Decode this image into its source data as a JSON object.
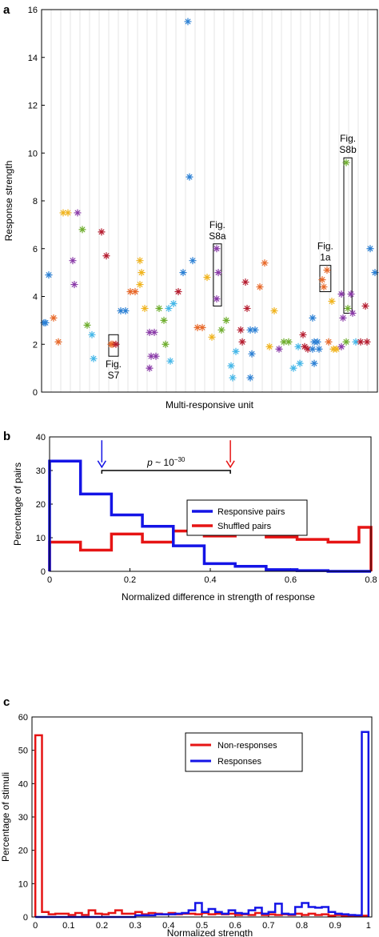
{
  "chart_data": [
    {
      "panel": "a",
      "type": "scatter",
      "xlabel": "Multi-responsive unit",
      "ylabel": "Response strength",
      "ylim": [
        0,
        16
      ],
      "yticks": [
        0,
        2,
        4,
        6,
        8,
        10,
        12,
        14,
        16
      ],
      "grid": "vertical",
      "marker": "asterisk",
      "units": [
        {
          "u": 1,
          "values": [
            2.9,
            2.9
          ],
          "color": "#2a7fd4"
        },
        {
          "u": 2,
          "values": [
            4.9
          ],
          "color": "#2a7fd4"
        },
        {
          "u": 3,
          "values": [
            3.1
          ],
          "color": "#e8692a"
        },
        {
          "u": 4,
          "values": [
            2.1
          ],
          "color": "#e8692a"
        },
        {
          "u": 5,
          "values": [
            7.5
          ],
          "color": "#f0b31c"
        },
        {
          "u": 6,
          "values": [
            7.5
          ],
          "color": "#f0b31c"
        },
        {
          "u": 7,
          "values": [
            5.5,
            4.5
          ],
          "color": "#8a3aa8"
        },
        {
          "u": 8,
          "values": [
            7.5
          ],
          "color": "#8a3aa8"
        },
        {
          "u": 9,
          "values": [
            6.8
          ],
          "color": "#6fae2e"
        },
        {
          "u": 10,
          "values": [
            2.8
          ],
          "color": "#6fae2e"
        },
        {
          "u": 11,
          "values": [
            2.4,
            1.4
          ],
          "color": "#42b6e8"
        },
        {
          "u": 13,
          "values": [
            6.7
          ],
          "color": "#b51b2e"
        },
        {
          "u": 14,
          "values": [
            5.7
          ],
          "color": "#b51b2e"
        },
        {
          "u": 15,
          "values": [
            2.0,
            2.0
          ],
          "color": "#e8692a"
        },
        {
          "u": 16,
          "values": [
            2.0
          ],
          "color": "#b51b2e"
        },
        {
          "u": 17,
          "values": [
            3.4
          ],
          "color": "#2a7fd4"
        },
        {
          "u": 18,
          "values": [
            3.4
          ],
          "color": "#2a7fd4"
        },
        {
          "u": 19,
          "values": [
            4.2
          ],
          "color": "#e8692a"
        },
        {
          "u": 20,
          "values": [
            4.2
          ],
          "color": "#e8692a"
        },
        {
          "u": 21,
          "values": [
            5.5,
            5.0,
            4.5
          ],
          "color": "#f0b31c"
        },
        {
          "u": 22,
          "values": [
            3.5
          ],
          "color": "#f0b31c"
        },
        {
          "u": 23,
          "values": [
            2.5,
            1.5,
            1.0
          ],
          "color": "#8a3aa8"
        },
        {
          "u": 24,
          "values": [
            2.5,
            1.5
          ],
          "color": "#8a3aa8"
        },
        {
          "u": 25,
          "values": [
            3.5
          ],
          "color": "#6fae2e"
        },
        {
          "u": 26,
          "values": [
            3.0,
            2.0
          ],
          "color": "#6fae2e"
        },
        {
          "u": 27,
          "values": [
            3.5,
            1.3
          ],
          "color": "#42b6e8"
        },
        {
          "u": 28,
          "values": [
            3.7
          ],
          "color": "#42b6e8"
        },
        {
          "u": 29,
          "values": [
            4.2
          ],
          "color": "#b51b2e"
        },
        {
          "u": 30,
          "values": [
            5.0
          ],
          "color": "#2a7fd4"
        },
        {
          "u": 31,
          "values": [
            15.5,
            9.0
          ],
          "color": "#2a7fd4"
        },
        {
          "u": 32,
          "values": [
            5.5
          ],
          "color": "#2a7fd4"
        },
        {
          "u": 33,
          "values": [
            2.7
          ],
          "color": "#e8692a"
        },
        {
          "u": 34,
          "values": [
            2.7
          ],
          "color": "#e8692a"
        },
        {
          "u": 35,
          "values": [
            4.8
          ],
          "color": "#f0b31c"
        },
        {
          "u": 36,
          "values": [
            2.3
          ],
          "color": "#f0b31c"
        },
        {
          "u": 37,
          "values": [
            6.0,
            5.0,
            3.9
          ],
          "color": "#8a3aa8"
        },
        {
          "u": 38,
          "values": [
            2.6
          ],
          "color": "#6fae2e"
        },
        {
          "u": 39,
          "values": [
            3.0
          ],
          "color": "#6fae2e"
        },
        {
          "u": 40,
          "values": [
            1.1,
            0.6
          ],
          "color": "#42b6e8"
        },
        {
          "u": 41,
          "values": [
            1.7
          ],
          "color": "#42b6e8"
        },
        {
          "u": 42,
          "values": [
            2.6,
            2.1
          ],
          "color": "#b51b2e"
        },
        {
          "u": 43,
          "values": [
            4.6,
            3.5
          ],
          "color": "#b51b2e"
        },
        {
          "u": 44,
          "values": [
            2.6,
            1.6,
            0.6
          ],
          "color": "#2a7fd4"
        },
        {
          "u": 45,
          "values": [
            2.6
          ],
          "color": "#2a7fd4"
        },
        {
          "u": 46,
          "values": [
            4.4
          ],
          "color": "#e8692a"
        },
        {
          "u": 47,
          "values": [
            5.4
          ],
          "color": "#e8692a"
        },
        {
          "u": 48,
          "values": [
            1.9
          ],
          "color": "#f0b31c"
        },
        {
          "u": 49,
          "values": [
            3.4
          ],
          "color": "#f0b31c"
        },
        {
          "u": 50,
          "values": [
            1.8
          ],
          "color": "#8a3aa8"
        },
        {
          "u": 51,
          "values": [
            2.1
          ],
          "color": "#6fae2e"
        },
        {
          "u": 52,
          "values": [
            2.1
          ],
          "color": "#6fae2e"
        },
        {
          "u": 53,
          "values": [
            1.0
          ],
          "color": "#42b6e8"
        },
        {
          "u": 54,
          "values": [
            1.9,
            1.2
          ],
          "color": "#42b6e8"
        },
        {
          "u": 55,
          "values": [
            2.4,
            1.9
          ],
          "color": "#b51b2e"
        },
        {
          "u": 56,
          "values": [
            1.8
          ],
          "color": "#b51b2e"
        },
        {
          "u": 57,
          "values": [
            3.1,
            2.1,
            1.8,
            1.2
          ],
          "color": "#2a7fd4"
        },
        {
          "u": 58,
          "values": [
            2.1,
            1.8
          ],
          "color": "#2a7fd4"
        },
        {
          "u": 59,
          "values": [
            4.7,
            4.4
          ],
          "color": "#e8692a"
        },
        {
          "u": 60,
          "values": [
            5.1,
            2.1
          ],
          "color": "#e8692a"
        },
        {
          "u": 61,
          "values": [
            3.8,
            1.8
          ],
          "color": "#f0b31c"
        },
        {
          "u": 62,
          "values": [
            1.8
          ],
          "color": "#f0b31c"
        },
        {
          "u": 63,
          "values": [
            4.1,
            3.1,
            1.9
          ],
          "color": "#8a3aa8"
        },
        {
          "u": 64,
          "values": [
            9.6,
            3.5,
            2.1
          ],
          "color": "#6fae2e"
        },
        {
          "u": 65,
          "values": [
            4.1,
            3.3
          ],
          "color": "#8a3aa8"
        },
        {
          "u": 66,
          "values": [
            2.1
          ],
          "color": "#42b6e8"
        },
        {
          "u": 67,
          "values": [
            2.1
          ],
          "color": "#b51b2e"
        },
        {
          "u": 68,
          "values": [
            3.6,
            2.1
          ],
          "color": "#b51b2e"
        },
        {
          "u": 69,
          "values": [
            6.0
          ],
          "color": "#2a7fd4"
        },
        {
          "u": 70,
          "values": [
            5.0
          ],
          "color": "#2a7fd4"
        }
      ],
      "annotations": [
        {
          "label": "Fig.\nS7",
          "unit_range": [
            14.5,
            16.5
          ],
          "y_range": [
            1.5,
            2.4
          ]
        },
        {
          "label": "Fig.\nS8a",
          "unit_range": [
            36.3,
            38.0
          ],
          "y_range": [
            3.6,
            6.2
          ]
        },
        {
          "label": "Fig.\n1a",
          "unit_range": [
            58.5,
            60.8
          ],
          "y_range": [
            4.2,
            5.3
          ]
        },
        {
          "label": "Fig.\nS8b",
          "unit_range": [
            63.5,
            65.2
          ],
          "y_range": [
            3.3,
            9.8
          ]
        }
      ]
    },
    {
      "panel": "b",
      "type": "line",
      "style": "step-histogram",
      "xlabel": "Normalized difference in strength of response",
      "ylabel": "Percentage of pairs",
      "xlim": [
        0,
        0.8
      ],
      "ylim": [
        0,
        40
      ],
      "xticks": [
        0,
        0.2,
        0.4,
        0.6,
        0.8
      ],
      "yticks": [
        0,
        10,
        20,
        30,
        40
      ],
      "bin_edges": [
        0,
        0.077,
        0.154,
        0.231,
        0.308,
        0.385,
        0.462,
        0.539,
        0.616,
        0.693,
        0.77,
        0.8
      ],
      "series": [
        {
          "name": "Responsive pairs",
          "color": "#1414e6",
          "values": [
            32.8,
            23.0,
            16.8,
            13.4,
            7.6,
            2.3,
            1.5,
            0.5,
            0.2,
            0.0,
            0.0
          ]
        },
        {
          "name": "Shuffled pairs",
          "color": "#e61414",
          "values": [
            8.7,
            6.3,
            11.1,
            8.7,
            12.0,
            10.5,
            13.5,
            10.2,
            9.5,
            8.7,
            13.1
          ]
        }
      ],
      "arrows": [
        {
          "x": 0.13,
          "color": "#1414e6"
        },
        {
          "x": 0.45,
          "color": "#e61414"
        }
      ],
      "bracket": {
        "x_range": [
          0.13,
          0.45
        ],
        "y": 30,
        "label_main": "p ~ 10",
        "label_exp": "−30"
      },
      "legend": "center-right"
    },
    {
      "panel": "c",
      "type": "line",
      "style": "step-histogram",
      "xlabel": "Normalized strength",
      "ylabel": "Percentage of stimuli",
      "xlim": [
        -0.01,
        1.01
      ],
      "ylim": [
        0,
        60
      ],
      "xticks": [
        0,
        0.1,
        0.2,
        0.3,
        0.4,
        0.5,
        0.6,
        0.7,
        0.8,
        0.9,
        1
      ],
      "xticklabels": [
        "0",
        "0.1",
        "0.2",
        "0.3",
        "0.4",
        "0.5",
        "0.6",
        "0.7",
        "0.8",
        "0.9",
        "1"
      ],
      "yticks": [
        0,
        10,
        20,
        30,
        40,
        50,
        60
      ],
      "bin_edges": [
        0,
        0.02,
        0.04,
        0.06,
        0.08,
        0.1,
        0.12,
        0.14,
        0.16,
        0.18,
        0.2,
        0.22,
        0.24,
        0.26,
        0.28,
        0.3,
        0.32,
        0.34,
        0.36,
        0.38,
        0.4,
        0.42,
        0.44,
        0.46,
        0.48,
        0.5,
        0.52,
        0.54,
        0.56,
        0.58,
        0.6,
        0.62,
        0.64,
        0.66,
        0.68,
        0.7,
        0.72,
        0.74,
        0.76,
        0.78,
        0.8,
        0.82,
        0.84,
        0.86,
        0.88,
        0.9,
        0.92,
        0.94,
        0.96,
        0.98,
        1.0
      ],
      "series": [
        {
          "name": "Non-responses",
          "color": "#e61414",
          "values": [
            54.5,
            1.5,
            0.8,
            1.0,
            1.0,
            0.6,
            1.2,
            0.6,
            2.0,
            1.0,
            0.8,
            1.2,
            2.0,
            1.0,
            1.0,
            1.5,
            0.8,
            1.2,
            1.0,
            0.8,
            1.2,
            0.8,
            1.0,
            1.0,
            0.8,
            1.2,
            0.8,
            1.0,
            0.8,
            1.0,
            0.6,
            0.8,
            0.6,
            1.2,
            0.6,
            0.8,
            0.6,
            0.8,
            0.6,
            1.0,
            0.6,
            1.0,
            0.6,
            0.8,
            0.4,
            0.6,
            0.4,
            0.4,
            0.4,
            0.4
          ]
        },
        {
          "name": "Responses",
          "color": "#1414e6",
          "values": [
            0,
            0,
            0,
            0,
            0,
            0,
            0,
            0,
            0,
            0,
            0,
            0,
            0,
            0,
            0,
            0.5,
            0.5,
            0.5,
            0.8,
            0.8,
            0.8,
            1.0,
            1.2,
            2.0,
            4.2,
            1.5,
            2.4,
            1.5,
            1.0,
            2.0,
            1.2,
            1.0,
            2.0,
            2.8,
            1.0,
            1.5,
            4.0,
            1.0,
            0.8,
            3.0,
            4.2,
            3.0,
            2.8,
            3.0,
            1.5,
            1.0,
            0.8,
            0.6,
            0.5,
            55.5
          ]
        }
      ],
      "legend": "top-right"
    }
  ],
  "panels": {
    "a": {
      "letter": "a"
    },
    "b": {
      "letter": "b"
    },
    "c": {
      "letter": "c"
    }
  }
}
